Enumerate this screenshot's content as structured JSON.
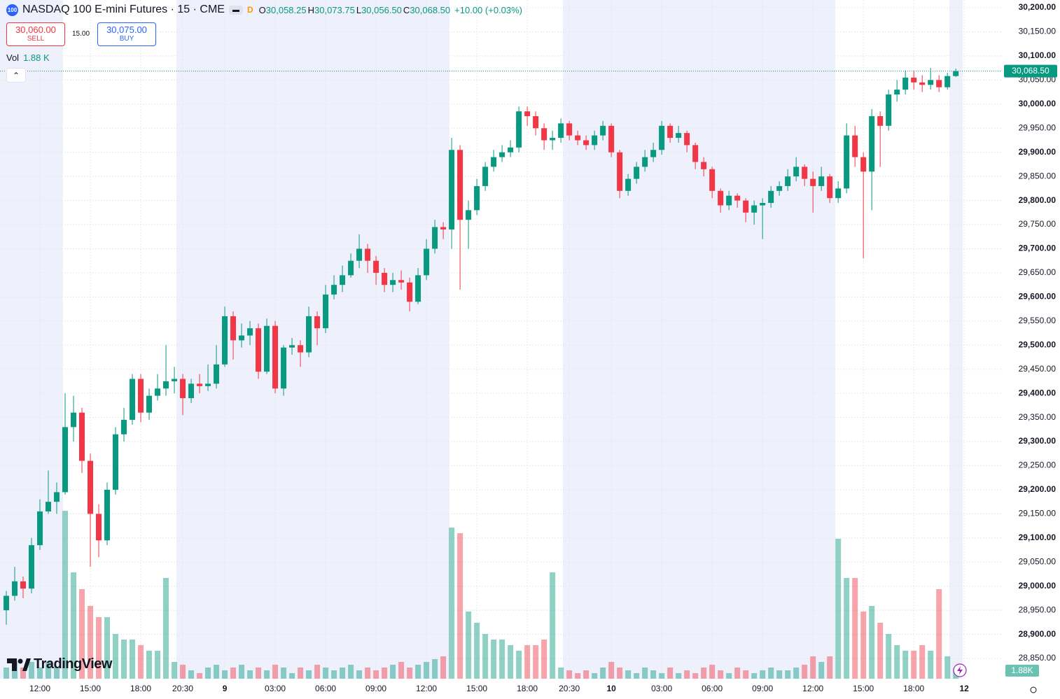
{
  "header": {
    "symbol_badge": "100",
    "title": "NASDAQ 100 E-mini Futures · 15 · CME",
    "flag": "D",
    "ohlc": [
      {
        "key": "O",
        "value": "30,058.25"
      },
      {
        "key": "H",
        "value": "30,073.75"
      },
      {
        "key": "L",
        "value": "30,056.50"
      },
      {
        "key": "C",
        "value": "30,068.50"
      }
    ],
    "change": "+10.00 (+0.03%)",
    "sell": {
      "price": "30,060.00",
      "label": "SELL"
    },
    "spread": "15.00",
    "buy": {
      "price": "30,075.00",
      "label": "BUY"
    },
    "volume_legend": {
      "label": "Vol",
      "value": "1.88 K"
    },
    "logo": "TradingView"
  },
  "chart_data": {
    "type": "candlestick",
    "up_color": "#089981",
    "down_color": "#f23645",
    "grid": true,
    "ylim": [
      28808,
      30216
    ],
    "yticks": [
      {
        "value": 28850,
        "label": "28,850.00"
      },
      {
        "value": 28900,
        "label": "28,900.00"
      },
      {
        "value": 28950,
        "label": "28,950.00"
      },
      {
        "value": 29000,
        "label": "29,000.00"
      },
      {
        "value": 29050,
        "label": "29,050.00"
      },
      {
        "value": 29100,
        "label": "29,100.00"
      },
      {
        "value": 29150,
        "label": "29,150.00"
      },
      {
        "value": 29200,
        "label": "29,200.00"
      },
      {
        "value": 29250,
        "label": "29,250.00"
      },
      {
        "value": 29300,
        "label": "29,300.00"
      },
      {
        "value": 29350,
        "label": "29,350.00"
      },
      {
        "value": 29400,
        "label": "29,400.00"
      },
      {
        "value": 29450,
        "label": "29,450.00"
      },
      {
        "value": 29500,
        "label": "29,500.00"
      },
      {
        "value": 29550,
        "label": "29,550.00"
      },
      {
        "value": 29600,
        "label": "29,600.00"
      },
      {
        "value": 29650,
        "label": "29,650.00"
      },
      {
        "value": 29700,
        "label": "29,700.00"
      },
      {
        "value": 29750,
        "label": "29,750.00"
      },
      {
        "value": 29800,
        "label": "29,800.00"
      },
      {
        "value": 29850,
        "label": "29,850.00"
      },
      {
        "value": 29900,
        "label": "29,900.00"
      },
      {
        "value": 29950,
        "label": "29,950.00"
      },
      {
        "value": 30000,
        "label": "30,000.00"
      },
      {
        "value": 30050,
        "label": "30,050.00"
      },
      {
        "value": 30100,
        "label": "30,100.00"
      },
      {
        "value": 30150,
        "label": "30,150.00"
      },
      {
        "value": 30200,
        "label": "30,200.00"
      }
    ],
    "xlim": [
      -0.75,
      118.4
    ],
    "xticks": [
      {
        "value": 4,
        "label": "12:00"
      },
      {
        "value": 10,
        "label": "15:00"
      },
      {
        "value": 16,
        "label": "18:00"
      },
      {
        "value": 21,
        "label": "20:30"
      },
      {
        "value": 26,
        "label": "9"
      },
      {
        "value": 32,
        "label": "03:00"
      },
      {
        "value": 38,
        "label": "06:00"
      },
      {
        "value": 44,
        "label": "09:00"
      },
      {
        "value": 50,
        "label": "12:00"
      },
      {
        "value": 56,
        "label": "15:00"
      },
      {
        "value": 62,
        "label": "18:00"
      },
      {
        "value": 67,
        "label": "20:30"
      },
      {
        "value": 72,
        "label": "10"
      },
      {
        "value": 78,
        "label": "03:00"
      },
      {
        "value": 84,
        "label": "06:00"
      },
      {
        "value": 90,
        "label": "09:00"
      },
      {
        "value": 96,
        "label": "12:00"
      },
      {
        "value": 102,
        "label": "15:00"
      },
      {
        "value": 108,
        "label": "18:00"
      },
      {
        "value": 114,
        "label": "12"
      }
    ],
    "last_price": {
      "value": 30068.5,
      "label": "30,068.50"
    },
    "last_volume_label": "1.88K",
    "candles": [
      [
        28950,
        28990,
        28920,
        28980
      ],
      [
        28980,
        29040,
        28970,
        29010
      ],
      [
        29010,
        29020,
        28975,
        28995
      ],
      [
        28995,
        29100,
        28985,
        29085
      ],
      [
        29085,
        29180,
        29075,
        29155
      ],
      [
        29155,
        29240,
        29150,
        29175
      ],
      [
        29175,
        29215,
        29150,
        29195
      ],
      [
        29195,
        29400,
        29190,
        29330
      ],
      [
        29330,
        29395,
        29300,
        29360
      ],
      [
        29360,
        29370,
        29235,
        29260
      ],
      [
        29260,
        29275,
        29040,
        29150
      ],
      [
        29150,
        29170,
        29060,
        29095
      ],
      [
        29095,
        29215,
        29085,
        29200
      ],
      [
        29200,
        29330,
        29190,
        29315
      ],
      [
        29315,
        29370,
        29300,
        29345
      ],
      [
        29345,
        29440,
        29335,
        29430
      ],
      [
        29430,
        29440,
        29340,
        29360
      ],
      [
        29360,
        29410,
        29345,
        29395
      ],
      [
        29395,
        29440,
        29385,
        29410
      ],
      [
        29410,
        29500,
        29395,
        29425
      ],
      [
        29425,
        29455,
        29400,
        29430
      ],
      [
        29430,
        29440,
        29355,
        29390
      ],
      [
        29390,
        29430,
        29380,
        29420
      ],
      [
        29420,
        29440,
        29400,
        29415
      ],
      [
        29415,
        29460,
        29405,
        29420
      ],
      [
        29420,
        29500,
        29410,
        29460
      ],
      [
        29460,
        29580,
        29455,
        29560
      ],
      [
        29560,
        29570,
        29470,
        29510
      ],
      [
        29510,
        29545,
        29495,
        29520
      ],
      [
        29520,
        29550,
        29500,
        29535
      ],
      [
        29535,
        29545,
        29430,
        29445
      ],
      [
        29445,
        29555,
        29440,
        29540
      ],
      [
        29540,
        29550,
        29400,
        29410
      ],
      [
        29410,
        29500,
        29395,
        29495
      ],
      [
        29495,
        29515,
        29480,
        29500
      ],
      [
        29500,
        29510,
        29455,
        29485
      ],
      [
        29485,
        29580,
        29475,
        29560
      ],
      [
        29560,
        29570,
        29500,
        29535
      ],
      [
        29535,
        29625,
        29525,
        29605
      ],
      [
        29605,
        29645,
        29595,
        29625
      ],
      [
        29625,
        29665,
        29610,
        29645
      ],
      [
        29645,
        29690,
        29640,
        29675
      ],
      [
        29675,
        29730,
        29660,
        29700
      ],
      [
        29700,
        29710,
        29650,
        29675
      ],
      [
        29675,
        29685,
        29625,
        29650
      ],
      [
        29650,
        29660,
        29610,
        29625
      ],
      [
        29625,
        29650,
        29610,
        29635
      ],
      [
        29635,
        29655,
        29615,
        29630
      ],
      [
        29630,
        29640,
        29570,
        29590
      ],
      [
        29590,
        29660,
        29585,
        29645
      ],
      [
        29645,
        29720,
        29635,
        29700
      ],
      [
        29700,
        29760,
        29690,
        29745
      ],
      [
        29745,
        29755,
        29720,
        29740
      ],
      [
        29740,
        29930,
        29700,
        29905
      ],
      [
        29905,
        29915,
        29615,
        29760
      ],
      [
        29760,
        29800,
        29700,
        29780
      ],
      [
        29780,
        29845,
        29770,
        29830
      ],
      [
        29830,
        29880,
        29820,
        29870
      ],
      [
        29870,
        29905,
        29860,
        29890
      ],
      [
        29890,
        29915,
        29880,
        29900
      ],
      [
        29900,
        29925,
        29890,
        29910
      ],
      [
        29910,
        29995,
        29900,
        29985
      ],
      [
        29985,
        29995,
        29955,
        29975
      ],
      [
        29975,
        29985,
        29935,
        29950
      ],
      [
        29950,
        29960,
        29905,
        29925
      ],
      [
        29925,
        29945,
        29905,
        29930
      ],
      [
        29930,
        29970,
        29920,
        29960
      ],
      [
        29960,
        29965,
        29925,
        29935
      ],
      [
        29935,
        29945,
        29915,
        29925
      ],
      [
        29925,
        29935,
        29905,
        29915
      ],
      [
        29915,
        29945,
        29905,
        29935
      ],
      [
        29935,
        29965,
        29925,
        29955
      ],
      [
        29955,
        29960,
        29890,
        29900
      ],
      [
        29900,
        29905,
        29805,
        29820
      ],
      [
        29820,
        29855,
        29810,
        29845
      ],
      [
        29845,
        29880,
        29835,
        29870
      ],
      [
        29870,
        29905,
        29860,
        29890
      ],
      [
        29890,
        29920,
        29880,
        29905
      ],
      [
        29905,
        29965,
        29895,
        29955
      ],
      [
        29955,
        29960,
        29920,
        29930
      ],
      [
        29930,
        29955,
        29920,
        29940
      ],
      [
        29940,
        29945,
        29900,
        29915
      ],
      [
        29915,
        29920,
        29865,
        29880
      ],
      [
        29880,
        29890,
        29850,
        29865
      ],
      [
        29865,
        29870,
        29805,
        29820
      ],
      [
        29820,
        29825,
        29775,
        29790
      ],
      [
        29790,
        29820,
        29780,
        29810
      ],
      [
        29810,
        29815,
        29785,
        29800
      ],
      [
        29800,
        29805,
        29755,
        29775
      ],
      [
        29775,
        29800,
        29750,
        29790
      ],
      [
        29790,
        29805,
        29720,
        29795
      ],
      [
        29795,
        29830,
        29785,
        29820
      ],
      [
        29820,
        29840,
        29810,
        29830
      ],
      [
        29830,
        29865,
        29820,
        29850
      ],
      [
        29850,
        29890,
        29840,
        29870
      ],
      [
        29870,
        29875,
        29830,
        29845
      ],
      [
        29845,
        29860,
        29775,
        29830
      ],
      [
        29830,
        29870,
        29820,
        29850
      ],
      [
        29850,
        29855,
        29795,
        29805
      ],
      [
        29805,
        29840,
        29795,
        29825
      ],
      [
        29825,
        29960,
        29815,
        29935
      ],
      [
        29935,
        29955,
        29870,
        29890
      ],
      [
        29890,
        29900,
        29680,
        29860
      ],
      [
        29860,
        29990,
        29780,
        29975
      ],
      [
        29975,
        29985,
        29870,
        29955
      ],
      [
        29955,
        30030,
        29945,
        30020
      ],
      [
        30020,
        30050,
        30005,
        30030
      ],
      [
        30030,
        30070,
        30020,
        30055
      ],
      [
        30055,
        30070,
        30030,
        30045
      ],
      [
        30045,
        30060,
        30025,
        30040
      ],
      [
        30040,
        30075,
        30030,
        30050
      ],
      [
        30050,
        30060,
        30025,
        30035
      ],
      [
        30035,
        30065,
        30030,
        30058.25
      ],
      [
        30058.25,
        30073.75,
        30056.5,
        30068.5
      ]
    ],
    "volume": [
      2,
      3,
      2,
      3,
      2,
      3,
      2,
      30,
      19,
      16,
      13,
      11,
      11,
      8,
      7,
      7,
      6,
      5,
      5,
      18,
      3,
      2.5,
      1.5,
      1,
      2,
      2.5,
      1.5,
      2,
      2.5,
      1.5,
      2,
      1.5,
      2.5,
      2,
      1,
      2,
      1.5,
      2.5,
      2,
      1.5,
      2,
      2.5,
      1.5,
      2,
      1.5,
      2,
      2.5,
      3,
      2,
      2.5,
      3,
      3.5,
      4,
      27,
      26,
      12,
      10,
      8,
      7,
      7,
      6,
      5,
      6,
      6,
      7,
      19,
      2,
      1.5,
      1,
      1.5,
      1,
      2,
      3,
      2,
      1.5,
      1,
      2,
      1.5,
      1,
      2,
      1,
      1.5,
      1,
      2,
      2.5,
      1.5,
      1,
      2,
      1.5,
      1,
      1.5,
      2,
      1.5,
      1.5,
      2,
      2.5,
      4,
      3,
      4,
      25,
      18,
      18,
      12,
      13,
      10,
      8,
      6,
      5,
      5,
      6,
      5,
      16,
      4,
      1.88
    ]
  }
}
